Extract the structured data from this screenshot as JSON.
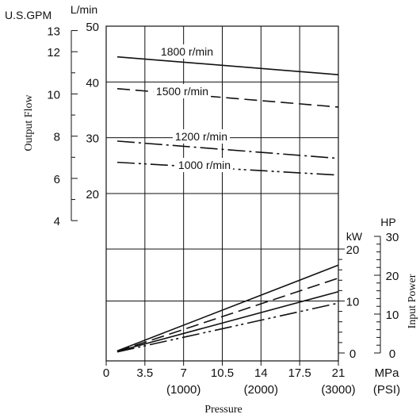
{
  "chart_data": [
    {
      "type": "line",
      "panel": "output flow",
      "x_label": "Pressure",
      "x_unit_mpa": "MPa",
      "x_unit_psi": "(PSI)",
      "x_ticks_mpa": [
        "0",
        "3.5",
        "7",
        "10.5",
        "14",
        "17.5",
        "21"
      ],
      "x_ticks_psi": [
        "(1000)",
        "(2000)",
        "(3000)"
      ],
      "x_ticks_psi_at_mpa": [
        7,
        14,
        21
      ],
      "xlim": [
        0,
        21
      ],
      "y_label": "Output Flow",
      "y_unit_lmin": "L/min",
      "y_unit_gpm": "U.S.GPM",
      "y_ticks_lmin": [
        "20",
        "30",
        "40",
        "50"
      ],
      "y_ticks_gpm": [
        "4",
        "6",
        "8",
        "10",
        "12",
        "13"
      ],
      "ylim_lmin": [
        20,
        50
      ],
      "grid": true,
      "series": [
        {
          "name": "1800 r/min",
          "x": [
            1,
            21
          ],
          "y": [
            44.5,
            41.3
          ],
          "dash": "solid"
        },
        {
          "name": "1500 r/min",
          "x": [
            1,
            21
          ],
          "y": [
            38.8,
            35.5
          ],
          "dash": "dashed"
        },
        {
          "name": "1200 r/min",
          "x": [
            1,
            21
          ],
          "y": [
            29.4,
            26.3
          ],
          "dash": "dashdot"
        },
        {
          "name": "1000 r/min",
          "x": [
            1,
            21
          ],
          "y": [
            25.6,
            23.3
          ],
          "dash": "dashdotdot"
        }
      ]
    },
    {
      "type": "line",
      "panel": "input power",
      "x_label": "Pressure",
      "xlim": [
        0,
        21
      ],
      "y_label": "Input Power",
      "y_unit_kw": "kW",
      "y_unit_hp": "HP",
      "y_ticks_kw": [
        "0",
        "10",
        "20"
      ],
      "y_ticks_hp": [
        "0",
        "10",
        "20",
        "30"
      ],
      "ylim_kw": [
        0,
        20
      ],
      "grid": true,
      "series": [
        {
          "x": [
            1,
            21
          ],
          "y": [
            0.4,
            16.9
          ],
          "dash": "solid"
        },
        {
          "x": [
            1,
            21
          ],
          "y": [
            0.3,
            14.4
          ],
          "dash": "dashed"
        },
        {
          "x": [
            1,
            21
          ],
          "y": [
            0.3,
            11.8
          ],
          "dash": "solid"
        },
        {
          "x": [
            1,
            21
          ],
          "y": [
            0.2,
            9.6
          ],
          "dash": "dashdotdot"
        }
      ]
    }
  ]
}
